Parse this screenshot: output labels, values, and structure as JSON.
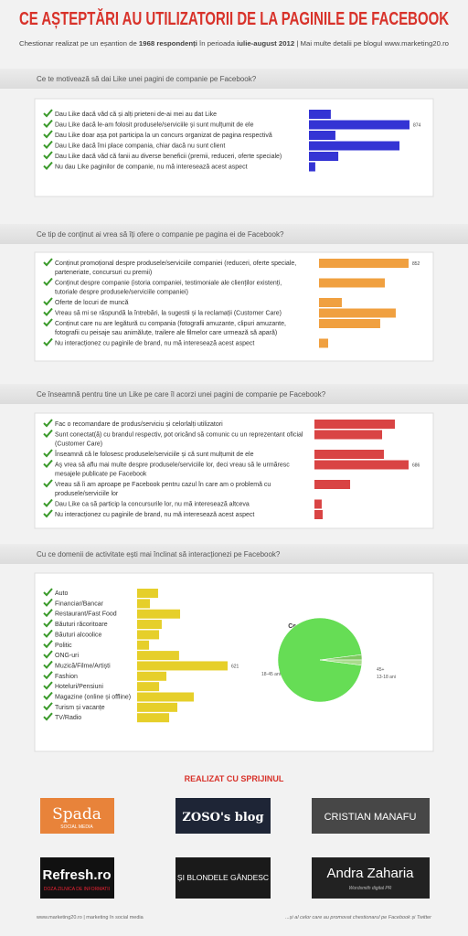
{
  "header": {
    "title": "CE AȘTEPTĂRI AU UTILIZATORII DE LA PAGINILE DE FACEBOOK",
    "subtitle": [
      "Chestionar realizat pe un eșantion de ",
      "1968 respondenți",
      " în perioada ",
      "iulie-august 2012",
      " | Mai multe detalii pe blogul www.marketing20.ro"
    ]
  },
  "chart_data": [
    {
      "type": "bar",
      "title": "Ce te motivează să dai Like unei pagini de companie pe Facebook?",
      "color": "#3434d4",
      "categories": [
        "Dau Like dacă văd că și alți prieteni de-ai mei au dat Like",
        "Dau Like dacă le-am folosit produsele/serviciile și sunt mulțumit de ele",
        "Dau Like doar așa pot participa la un concurs organizat de pagina respectivă",
        "Dau Like dacă îmi place compania, chiar dacă nu sunt client",
        "Dau Like dacă văd că fanii au diverse beneficii (premii, reduceri, oferte speciale)",
        "Nu dau Like paginilor de companie, nu mă interesează acest aspect"
      ],
      "values": [
        190,
        874,
        230,
        787,
        255,
        55
      ]
    },
    {
      "type": "bar",
      "title": "Ce tip de conținut ai vrea să îți ofere o companie pe pagina ei de Facebook?",
      "color": "#f0a040",
      "categories": [
        "Conținut promoțional despre produsele/serviciile companiei (reduceri, oferte speciale, parteneriate, concursuri cu premii)",
        "Conținut despre companie (istoria companiei, testimoniale ale clienților existenți, tutoriale despre produsele/serviciile companiei)",
        "Oferte de locuri de muncă",
        "Vreau să mi se răspundă la întrebări, la sugestii și la reclamații (Customer Care)",
        "Conținut care nu are legătură cu compania (fotografii amuzante, clipuri amuzante, fotografii cu peisaje sau animăluțe, trailere ale filmelor care urmează să apară)",
        "Nu interacționez cu paginile de brand, nu mă interesează acest aspect"
      ],
      "values": [
        852,
        626,
        217,
        730,
        582,
        87
      ]
    },
    {
      "type": "bar",
      "title": "Ce înseamnă pentru tine un Like pe care îl acorzi unei pagini de companie pe Facebook?",
      "color": "#d94444",
      "categories": [
        "Fac o recomandare de produs/serviciu și celorlalți utilizatori",
        "Sunt conectat(ă) cu brandul respectiv, pot oricând să comunic cu un reprezentant oficial (Customer Care)",
        "Înseamnă că le folosesc produsele/serviciile și că sunt mulțumit de ele",
        "Aș vrea să aflu mai multe despre produsele/serviciile lor, deci vreau să le urmăresc mesajele publicate pe Facebook",
        "Vreau să îi am aproape pe Facebook pentru cazul în care am o problemă cu produsele/serviciile lor",
        "Dau Like ca să particip la concursurile lor, nu mă interesează altceva",
        "Nu interacționez cu paginile de brand, nu mă interesează acest aspect"
      ],
      "values": [
        586,
        493,
        506,
        686,
        260,
        53,
        60
      ]
    },
    {
      "type": "bar",
      "title": "Cu ce domenii de activitate ești mai înclinat să interacționezi pe Facebook?",
      "color": "#e6cf2a",
      "categories": [
        "Auto",
        "Financiar/Bancar",
        "Restaurant/Fast Food",
        "Băuturi răcoritoare",
        "Băuturi alcoolice",
        "Politic",
        "ONG-uri",
        "Muzică/Filme/Artiști",
        "Fashion",
        "Hoteluri/Pensiuni",
        "Magazine (online și offline)",
        "Turism și vacanțe",
        "TV/Radio"
      ],
      "values": [
        144,
        88,
        295,
        169,
        151,
        82,
        288,
        621,
        201,
        151,
        389,
        276,
        220
      ]
    },
    {
      "type": "pie",
      "title": "Ce vârstă ai?",
      "categories": [
        "18-45 ani",
        "45+",
        "13-18 ani"
      ],
      "values": [
        96,
        2,
        2
      ],
      "colors": [
        "#66dd55",
        "#7fc860",
        "#a8dc8c"
      ]
    }
  ],
  "sponsors": {
    "title": "REALIZAT CU SPRIJINUL",
    "logos": [
      {
        "name": "Spada",
        "tagline": "SOCIAL MEDIA"
      },
      {
        "name": "ZOSO's blog"
      },
      {
        "name": "CRISTIAN MANAFU"
      },
      {
        "name": "Refresh.ro",
        "tagline": "DOZA ZILNICA DE INFORMATII"
      },
      {
        "name": "ȘI BLONDELE GÂNDESC"
      },
      {
        "name": "Andra Zaharia",
        "tagline": "Wordsmith digital PR"
      }
    ]
  },
  "footer": {
    "left": "www.marketing20.ro | marketing în social media",
    "right": "...și al celor care au promovat chestionarul pe Facebook și Twitter"
  }
}
